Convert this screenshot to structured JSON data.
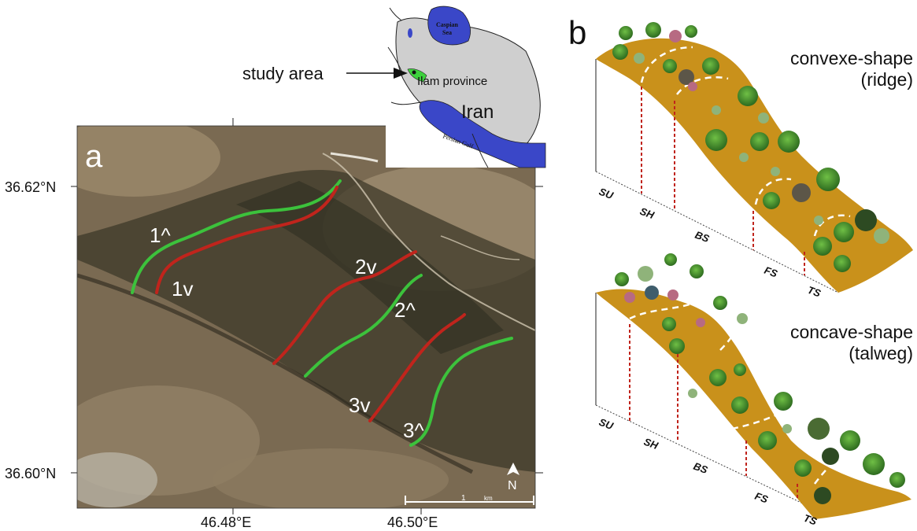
{
  "panel_a": {
    "label": "a",
    "lat_labels": [
      "36.62°N",
      "36.60°N"
    ],
    "lon_labels": [
      "46.48°E",
      "46.50°E"
    ],
    "transects": [
      {
        "label": "1^",
        "color": "#3cc23c"
      },
      {
        "label": "1v",
        "color": "#c0241c"
      },
      {
        "label": "2v",
        "color": "#c0241c"
      },
      {
        "label": "2^",
        "color": "#3cc23c"
      },
      {
        "label": "3v",
        "color": "#c0241c"
      },
      {
        "label": "3^",
        "color": "#3cc23c"
      }
    ],
    "north_arrow": "N",
    "scale_bar": {
      "value": "1",
      "unit": "km"
    }
  },
  "inset": {
    "pointer_label": "study area",
    "caspian": "Caspian Sea",
    "province": "Ilam province",
    "country": "Iran",
    "gulf": "Persian Gulf"
  },
  "panel_b": {
    "label": "b",
    "top": {
      "title_line1": "convexe-shape",
      "title_line2": "(ridge)"
    },
    "bottom": {
      "title_line1": "concave-shape",
      "title_line2": "(talweg)"
    },
    "positions": [
      "SU",
      "SH",
      "BS",
      "FS",
      "TS"
    ]
  },
  "colors": {
    "hillslope": "#c9911b",
    "ridge_line": "#3cc23c",
    "valley_line": "#c0241c"
  }
}
